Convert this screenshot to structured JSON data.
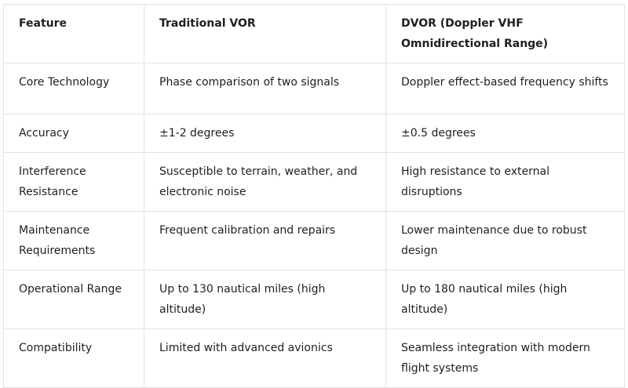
{
  "headers": [
    "Feature",
    "Traditional VOR",
    "DVOR (Doppler VHF Omnidirectional Range)"
  ],
  "rows": [
    [
      "Core Technology",
      "Phase comparison of two signals",
      "Doppler effect-based frequency shifts"
    ],
    [
      "Accuracy",
      "±1-2 degrees",
      "±0.5 degrees"
    ],
    [
      "Interference Resistance",
      "Susceptible to terrain, weather, and electronic noise",
      "High resistance to external disruptions"
    ],
    [
      "Maintenance Requirements",
      "Frequent calibration and repairs",
      "Lower maintenance due to robust design"
    ],
    [
      "Operational Range",
      "Up to 130 nautical miles (high altitude)",
      "Up to 180 nautical miles (high altitude)"
    ],
    [
      "Compatibility",
      "Limited with advanced avionics",
      "Seamless integration with modern flight systems"
    ]
  ]
}
